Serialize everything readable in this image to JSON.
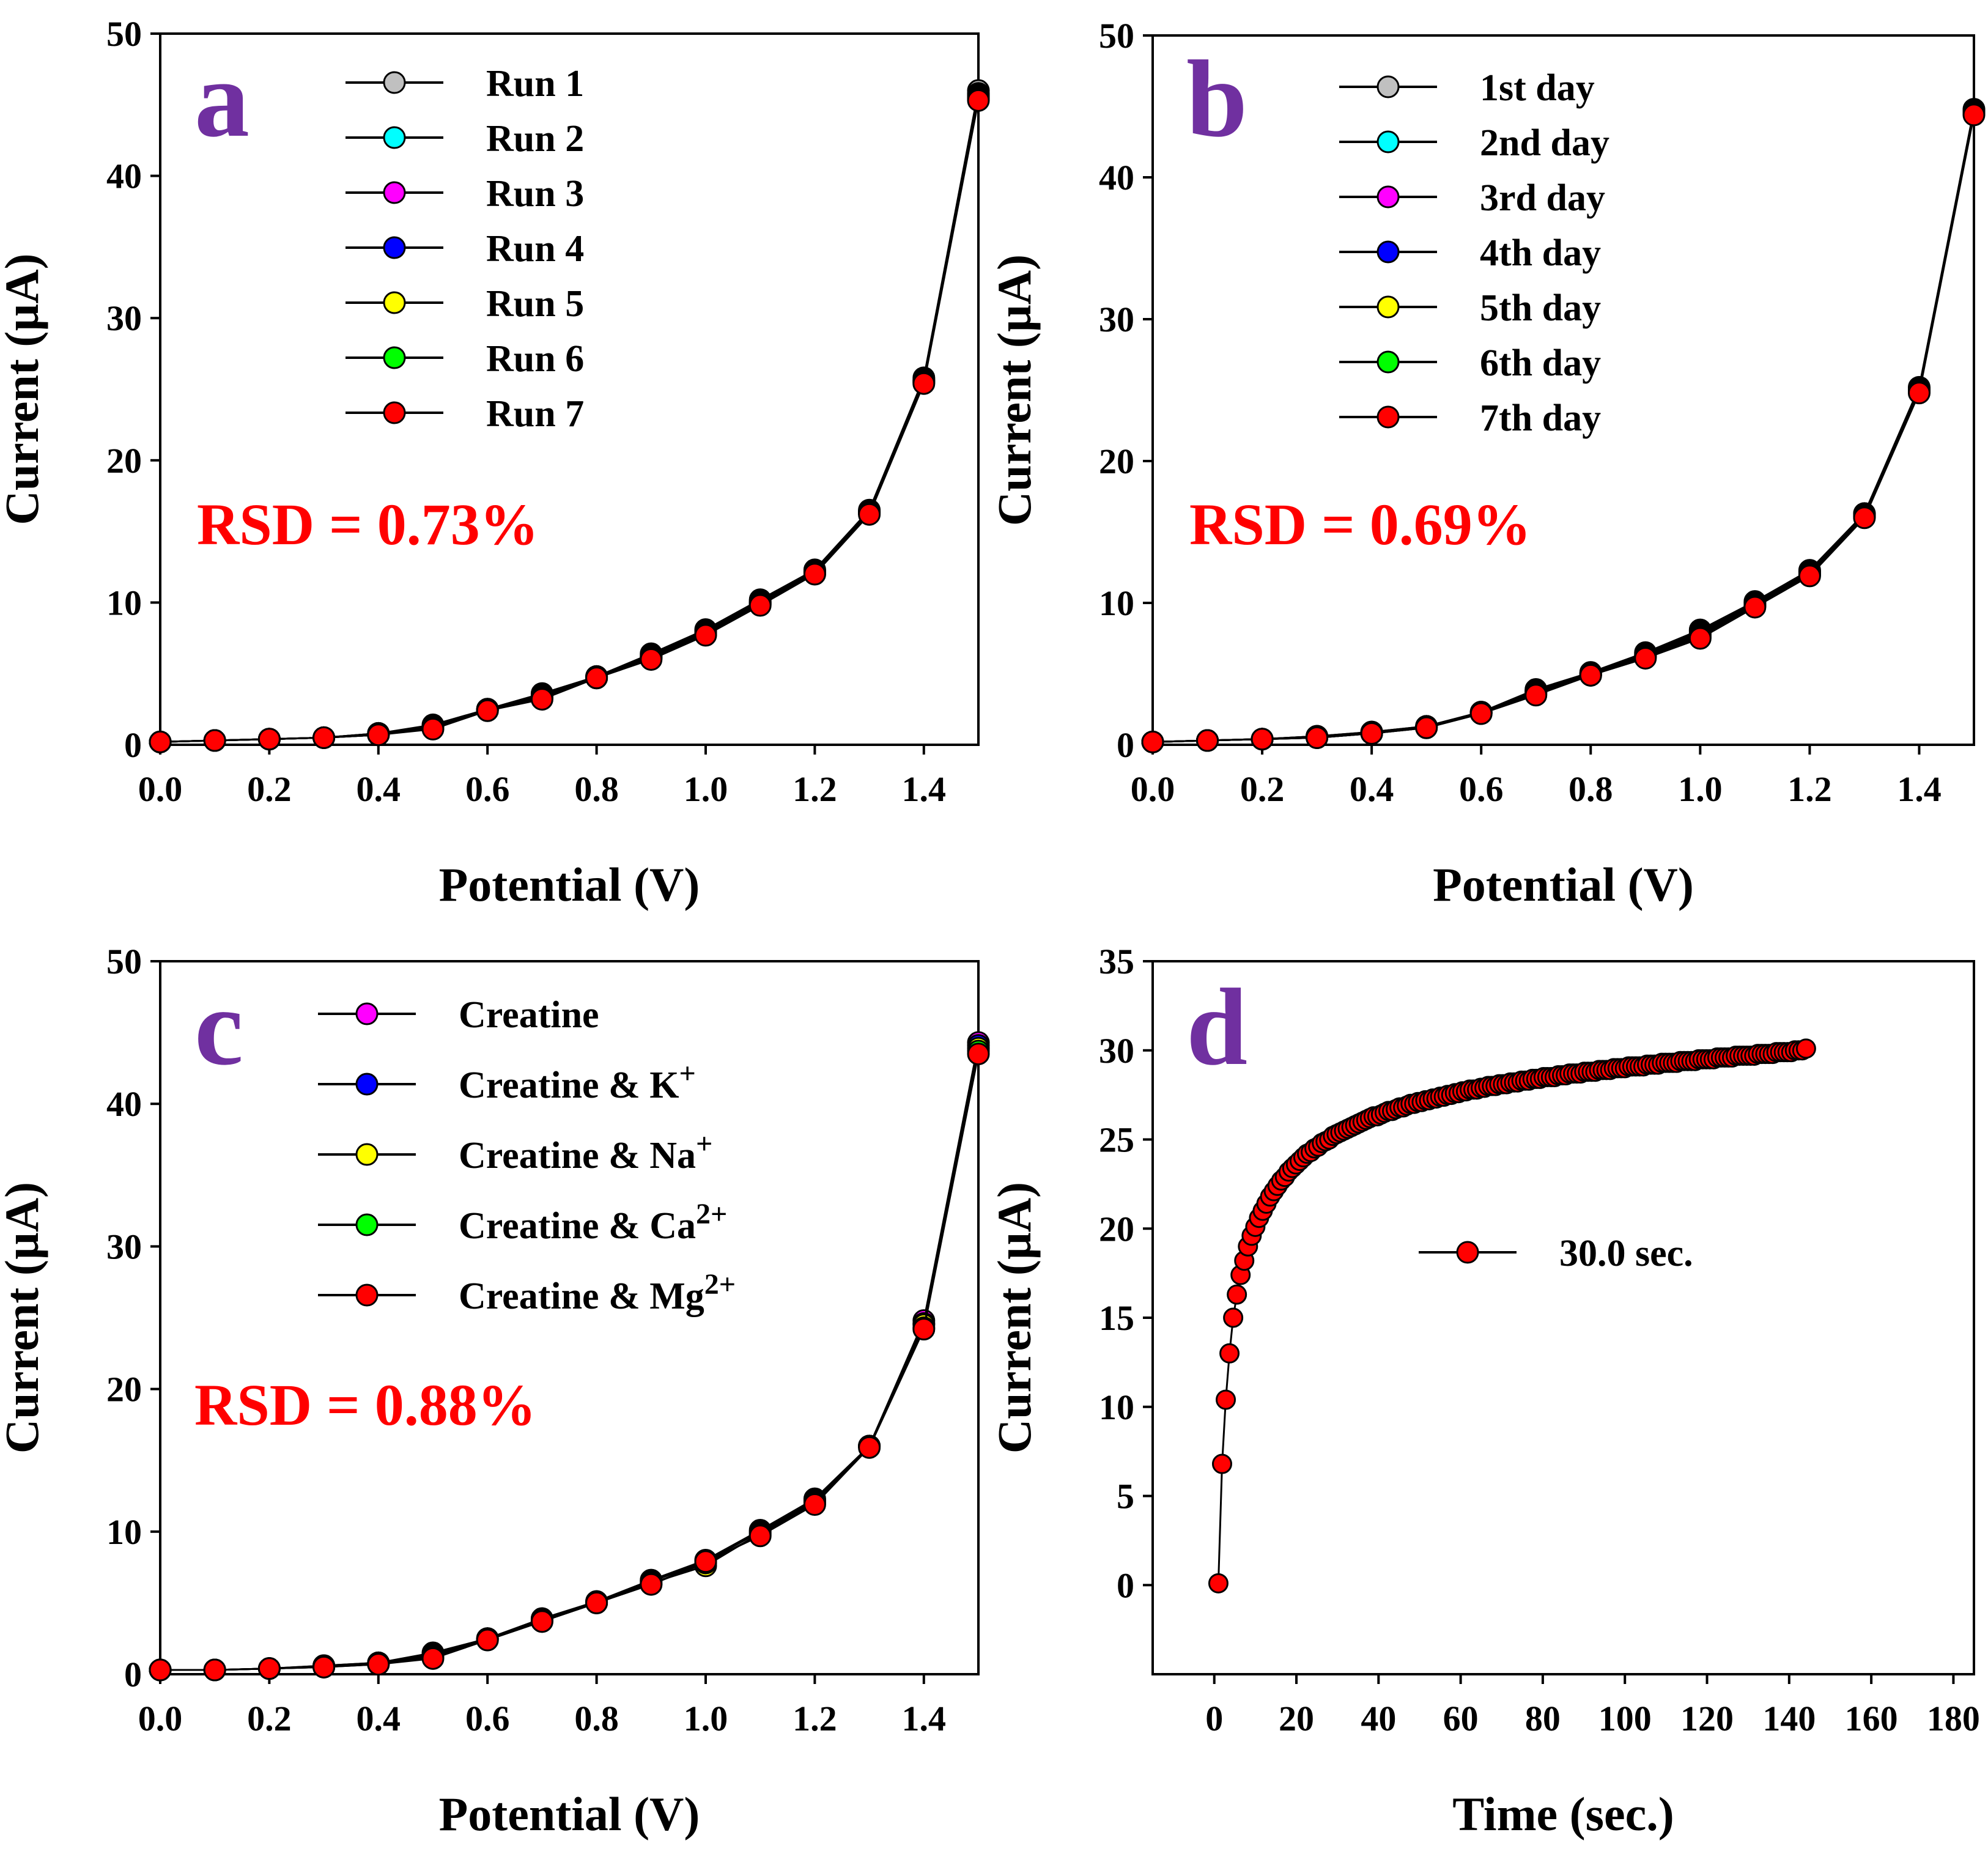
{
  "colors": {
    "axis": "#000000",
    "panel_letter": "#7030a0",
    "rsd": "#ff0000",
    "line": "#000000",
    "marker_edge": "#000000"
  },
  "chart_data": [
    {
      "id": "a",
      "type": "line",
      "panel_label": "a",
      "xlabel": "Potential (V)",
      "ylabel": "Current (µA)",
      "xlim": [
        0,
        1.5
      ],
      "ylim": [
        0,
        50
      ],
      "xticks": [
        "0.0",
        "0.2",
        "0.4",
        "0.6",
        "0.8",
        "1.0",
        "1.2",
        "1.4"
      ],
      "yticks": [
        "0",
        "10",
        "20",
        "30",
        "40",
        "50"
      ],
      "annotation": "RSD = 0.73%",
      "legend_position": "top-center",
      "x": [
        0,
        0.1,
        0.2,
        0.3,
        0.4,
        0.5,
        0.6,
        0.7,
        0.8,
        0.9,
        1.0,
        1.1,
        1.2,
        1.3,
        1.4,
        1.5
      ],
      "series": [
        {
          "name": "Run 1",
          "color": "#c0c0c0",
          "values": [
            0.2,
            0.3,
            0.4,
            0.5,
            0.8,
            1.4,
            2.5,
            3.6,
            4.8,
            6.4,
            8.1,
            10.2,
            12.3,
            16.5,
            25.8,
            46.0
          ]
        },
        {
          "name": "Run 2",
          "color": "#00ffff",
          "values": [
            0.2,
            0.3,
            0.4,
            0.5,
            0.8,
            1.3,
            2.5,
            3.5,
            4.8,
            6.3,
            8.0,
            10.1,
            12.2,
            16.4,
            25.7,
            45.8
          ]
        },
        {
          "name": "Run 3",
          "color": "#ff00ff",
          "values": [
            0.2,
            0.3,
            0.4,
            0.5,
            0.8,
            1.3,
            2.5,
            3.4,
            4.8,
            6.2,
            7.9,
            10.0,
            12.2,
            16.4,
            25.6,
            45.7
          ]
        },
        {
          "name": "Run 4",
          "color": "#0000ff",
          "values": [
            0.2,
            0.3,
            0.4,
            0.5,
            0.7,
            1.2,
            2.5,
            3.4,
            4.7,
            6.2,
            7.9,
            10.0,
            12.1,
            16.3,
            25.6,
            45.6
          ]
        },
        {
          "name": "Run 5",
          "color": "#ffff00",
          "values": [
            0.2,
            0.3,
            0.4,
            0.5,
            0.7,
            1.2,
            2.4,
            3.3,
            4.7,
            6.1,
            7.8,
            9.9,
            12.1,
            16.3,
            25.5,
            45.5
          ]
        },
        {
          "name": "Run 6",
          "color": "#00ff00",
          "values": [
            0.2,
            0.3,
            0.4,
            0.5,
            0.7,
            1.2,
            2.4,
            3.3,
            4.7,
            6.1,
            7.8,
            9.9,
            12.0,
            16.3,
            25.5,
            45.4
          ]
        },
        {
          "name": "Run 7",
          "color": "#ff0000",
          "values": [
            0.2,
            0.3,
            0.4,
            0.5,
            0.7,
            1.1,
            2.4,
            3.2,
            4.7,
            6.0,
            7.7,
            9.8,
            12.0,
            16.2,
            25.4,
            45.3
          ]
        }
      ]
    },
    {
      "id": "b",
      "type": "line",
      "panel_label": "b",
      "xlabel": "Potential (V)",
      "ylabel": "Current (µA)",
      "xlim": [
        0,
        1.5
      ],
      "ylim": [
        0,
        50
      ],
      "xticks": [
        "0.0",
        "0.2",
        "0.4",
        "0.6",
        "0.8",
        "1.0",
        "1.2",
        "1.4"
      ],
      "yticks": [
        "0",
        "10",
        "20",
        "30",
        "40",
        "50"
      ],
      "annotation": "RSD = 0.69%",
      "legend_position": "top-center",
      "x": [
        0,
        0.1,
        0.2,
        0.3,
        0.4,
        0.5,
        0.6,
        0.7,
        0.8,
        0.9,
        1.0,
        1.1,
        1.2,
        1.3,
        1.4,
        1.5
      ],
      "series": [
        {
          "name": "1st day",
          "color": "#c0c0c0",
          "values": [
            0.2,
            0.3,
            0.4,
            0.6,
            0.9,
            1.3,
            2.3,
            3.9,
            5.1,
            6.5,
            8.1,
            10.1,
            12.3,
            16.3,
            25.2,
            44.8
          ]
        },
        {
          "name": "2nd day",
          "color": "#00ffff",
          "values": [
            0.2,
            0.3,
            0.4,
            0.6,
            0.9,
            1.3,
            2.3,
            3.8,
            5.0,
            6.4,
            8.0,
            10.0,
            12.2,
            16.3,
            25.1,
            44.7
          ]
        },
        {
          "name": "3rd day",
          "color": "#ff00ff",
          "values": [
            0.2,
            0.3,
            0.4,
            0.6,
            0.8,
            1.3,
            2.3,
            3.8,
            5.0,
            6.3,
            7.9,
            10.0,
            12.2,
            16.2,
            25.0,
            44.7
          ]
        },
        {
          "name": "4th day",
          "color": "#0000ff",
          "values": [
            0.2,
            0.3,
            0.4,
            0.5,
            0.8,
            1.3,
            2.3,
            3.7,
            5.0,
            6.3,
            7.8,
            9.9,
            12.1,
            16.2,
            25.0,
            44.6
          ]
        },
        {
          "name": "5th day",
          "color": "#ffff00",
          "values": [
            0.2,
            0.3,
            0.4,
            0.5,
            0.8,
            1.2,
            2.2,
            3.7,
            4.9,
            6.2,
            7.7,
            9.8,
            12.0,
            16.1,
            24.9,
            44.6
          ]
        },
        {
          "name": "6th day",
          "color": "#00ff00",
          "values": [
            0.2,
            0.3,
            0.4,
            0.5,
            0.8,
            1.2,
            2.2,
            3.6,
            4.9,
            6.2,
            7.6,
            9.8,
            12.0,
            16.1,
            24.9,
            44.5
          ]
        },
        {
          "name": "7th day",
          "color": "#ff0000",
          "values": [
            0.2,
            0.3,
            0.4,
            0.5,
            0.8,
            1.2,
            2.2,
            3.5,
            4.9,
            6.1,
            7.5,
            9.7,
            11.9,
            16.0,
            24.8,
            44.4
          ]
        }
      ]
    },
    {
      "id": "c",
      "type": "line",
      "panel_label": "c",
      "xlabel": "Potential (V)",
      "ylabel": "Current (µA)",
      "xlim": [
        0,
        1.5
      ],
      "ylim": [
        0,
        50
      ],
      "xticks": [
        "0.0",
        "0.2",
        "0.4",
        "0.6",
        "0.8",
        "1.0",
        "1.2",
        "1.4"
      ],
      "yticks": [
        "0",
        "10",
        "20",
        "30",
        "40",
        "50"
      ],
      "annotation": "RSD = 0.88%",
      "legend_position": "top-center",
      "x": [
        0,
        0.1,
        0.2,
        0.3,
        0.4,
        0.5,
        0.6,
        0.7,
        0.8,
        0.9,
        1.0,
        1.1,
        1.2,
        1.3,
        1.4,
        1.5
      ],
      "series": [
        {
          "name": "Creatine",
          "sup": "",
          "color": "#ff00ff",
          "values": [
            0.3,
            0.3,
            0.4,
            0.6,
            0.8,
            1.5,
            2.5,
            3.9,
            5.1,
            6.6,
            8.0,
            10.1,
            12.3,
            16.0,
            24.8,
            44.3
          ]
        },
        {
          "name": "Creatine & K",
          "sup": "+",
          "color": "#0000ff",
          "values": [
            0.3,
            0.3,
            0.4,
            0.6,
            0.8,
            1.4,
            2.5,
            3.8,
            5.1,
            6.5,
            7.9,
            10.0,
            12.2,
            16.0,
            24.6,
            44.1
          ]
        },
        {
          "name": "Creatine & Na",
          "sup": "+",
          "color": "#ffff00",
          "values": [
            0.3,
            0.3,
            0.4,
            0.5,
            0.8,
            1.3,
            2.5,
            3.8,
            5.0,
            6.4,
            7.6,
            9.9,
            12.1,
            16.0,
            24.5,
            43.9
          ]
        },
        {
          "name": "Creatine & Ca",
          "sup": "2+",
          "color": "#00ff00",
          "values": [
            0.3,
            0.3,
            0.4,
            0.5,
            0.7,
            1.2,
            2.4,
            3.7,
            5.0,
            6.3,
            7.8,
            9.8,
            12.0,
            16.0,
            24.3,
            43.7
          ]
        },
        {
          "name": "Creatine & Mg",
          "sup": "2+",
          "color": "#ff0000",
          "values": [
            0.3,
            0.3,
            0.4,
            0.5,
            0.7,
            1.1,
            2.4,
            3.7,
            5.0,
            6.3,
            7.9,
            9.7,
            11.9,
            15.9,
            24.2,
            43.5
          ]
        }
      ]
    },
    {
      "id": "d",
      "type": "line",
      "panel_label": "d",
      "xlabel": "Time (sec.)",
      "ylabel": "Current (µA)",
      "xlim": [
        -15,
        185
      ],
      "ylim": [
        -5,
        35
      ],
      "xticks": [
        "0",
        "20",
        "40",
        "60",
        "80",
        "100",
        "120",
        "140",
        "160",
        "180"
      ],
      "yticks": [
        "0",
        "5",
        "10",
        "15",
        "20",
        "25",
        "30",
        "35"
      ],
      "legend_position": "center-right",
      "series": [
        {
          "name": "30.0 sec.",
          "color": "#ff0000",
          "model": "1 + 0.9 s, s = 0..159",
          "values": [
            0.1,
            6.8,
            10.4,
            13.0,
            15.0,
            16.3,
            17.4,
            18.2,
            19.0,
            19.6,
            20.1,
            20.6,
            21.0,
            21.4,
            21.8,
            22.1,
            22.4,
            22.7,
            22.9,
            23.2,
            23.4,
            23.6,
            23.8,
            24.0,
            24.2,
            24.3,
            24.5,
            24.6,
            24.8,
            24.9,
            25.0,
            25.2,
            25.3,
            25.4,
            25.5,
            25.6,
            25.7,
            25.8,
            25.9,
            26.0,
            26.1,
            26.2,
            26.3,
            26.3,
            26.4,
            26.5,
            26.6,
            26.6,
            26.7,
            26.8,
            26.8,
            26.9,
            27.0,
            27.0,
            27.1,
            27.1,
            27.2,
            27.2,
            27.3,
            27.3,
            27.4,
            27.4,
            27.5,
            27.5,
            27.6,
            27.6,
            27.7,
            27.7,
            27.8,
            27.8,
            27.8,
            27.9,
            27.9,
            28.0,
            28.0,
            28.0,
            28.1,
            28.1,
            28.1,
            28.2,
            28.2,
            28.2,
            28.3,
            28.3,
            28.3,
            28.4,
            28.4,
            28.4,
            28.5,
            28.5,
            28.5,
            28.5,
            28.6,
            28.6,
            28.6,
            28.7,
            28.7,
            28.7,
            28.7,
            28.8,
            28.8,
            28.8,
            28.8,
            28.9,
            28.9,
            28.9,
            28.9,
            29.0,
            29.0,
            29.0,
            29.0,
            29.1,
            29.1,
            29.1,
            29.1,
            29.1,
            29.2,
            29.2,
            29.2,
            29.2,
            29.3,
            29.3,
            29.3,
            29.3,
            29.3,
            29.4,
            29.4,
            29.4,
            29.4,
            29.4,
            29.5,
            29.5,
            29.5,
            29.5,
            29.5,
            29.6,
            29.6,
            29.6,
            29.6,
            29.6,
            29.7,
            29.7,
            29.7,
            29.7,
            29.7,
            29.7,
            29.8,
            29.8,
            29.8,
            29.8,
            29.8,
            29.9,
            29.9,
            29.9,
            29.9,
            29.9,
            30.0,
            30.0,
            30.0,
            30.1
          ]
        }
      ]
    }
  ]
}
